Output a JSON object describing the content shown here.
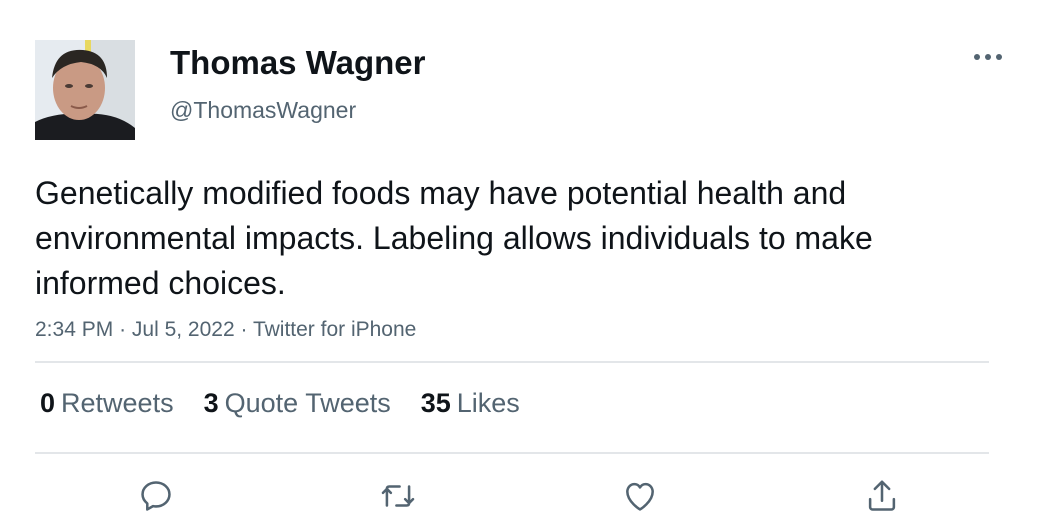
{
  "tweet": {
    "author": {
      "name": "Thomas Wagner",
      "handle": "@ThomasWagner"
    },
    "text": "Genetically modified foods may have potential health and environmental impacts. Labeling allows individuals to make informed choices.",
    "time": "2:34 PM",
    "date": "Jul 5, 2022",
    "source": "Twitter for iPhone",
    "separator": "·"
  },
  "stats": {
    "retweets": {
      "count": "0",
      "label": "Retweets"
    },
    "quote_tweets": {
      "count": "3",
      "label": "Quote Tweets"
    },
    "likes": {
      "count": "35",
      "label": "Likes"
    }
  },
  "icons": {
    "more": "more-dots-icon",
    "reply": "reply-icon",
    "retweet": "retweet-icon",
    "like": "heart-icon",
    "share": "share-icon"
  },
  "colors": {
    "text_primary": "#0f1419",
    "text_secondary": "#536471",
    "divider": "#e3e6e9"
  }
}
